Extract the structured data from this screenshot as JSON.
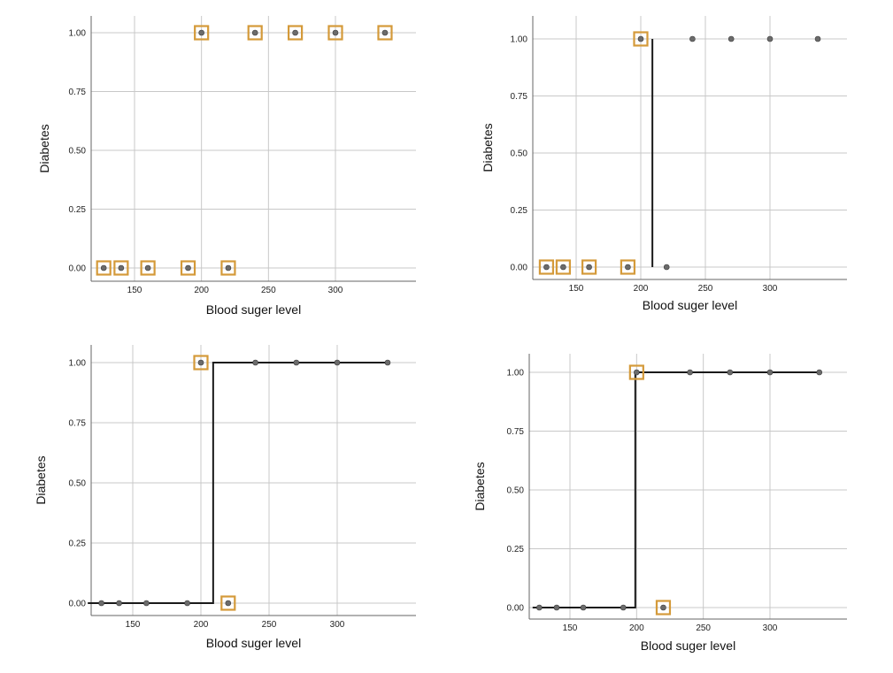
{
  "chart_data": [
    {
      "type": "scatter",
      "xlabel": "Blood suger level",
      "ylabel": "Diabetes",
      "xticks": [
        150,
        200,
        250,
        300
      ],
      "yticks": [
        0.0,
        0.25,
        0.5,
        0.75,
        1.0
      ],
      "ytick_labels": [
        "0.00",
        "0.25",
        "0.50",
        "0.75",
        "1.00"
      ],
      "grid": true,
      "xlim": [
        117,
        345
      ],
      "ylim": [
        -0.05,
        1.07
      ],
      "points": [
        {
          "x": 127,
          "y": 0,
          "highlighted": true
        },
        {
          "x": 140,
          "y": 0,
          "highlighted": true
        },
        {
          "x": 160,
          "y": 0,
          "highlighted": true
        },
        {
          "x": 190,
          "y": 0,
          "highlighted": true
        },
        {
          "x": 220,
          "y": 0,
          "highlighted": true
        },
        {
          "x": 200,
          "y": 1,
          "highlighted": true
        },
        {
          "x": 240,
          "y": 1,
          "highlighted": true
        },
        {
          "x": 270,
          "y": 1,
          "highlighted": true
        },
        {
          "x": 300,
          "y": 1,
          "highlighted": true
        },
        {
          "x": 337,
          "y": 1,
          "highlighted": true
        }
      ],
      "step_line": null
    },
    {
      "type": "scatter",
      "xlabel": "Blood suger level",
      "ylabel": "Diabetes",
      "xticks": [
        150,
        200,
        250,
        300
      ],
      "yticks": [
        0.0,
        0.25,
        0.5,
        0.75,
        1.0
      ],
      "ytick_labels": [
        "0.00",
        "0.25",
        "0.50",
        "0.75",
        "1.00"
      ],
      "grid": true,
      "xlim": [
        117,
        345
      ],
      "ylim": [
        -0.05,
        1.07
      ],
      "points": [
        {
          "x": 127,
          "y": 0,
          "highlighted": true
        },
        {
          "x": 140,
          "y": 0,
          "highlighted": true
        },
        {
          "x": 160,
          "y": 0,
          "highlighted": true
        },
        {
          "x": 190,
          "y": 0,
          "highlighted": true
        },
        {
          "x": 220,
          "y": 0,
          "highlighted": false
        },
        {
          "x": 200,
          "y": 1,
          "highlighted": true
        },
        {
          "x": 240,
          "y": 1,
          "highlighted": false
        },
        {
          "x": 270,
          "y": 1,
          "highlighted": false
        },
        {
          "x": 300,
          "y": 1,
          "highlighted": false
        },
        {
          "x": 337,
          "y": 1,
          "highlighted": false
        }
      ],
      "step_line": {
        "threshold": 209,
        "type": "vertical"
      }
    },
    {
      "type": "scatter",
      "xlabel": "Blood suger level",
      "ylabel": "Diabetes",
      "xticks": [
        150,
        200,
        250,
        300
      ],
      "yticks": [
        0.0,
        0.25,
        0.5,
        0.75,
        1.0
      ],
      "ytick_labels": [
        "0.00",
        "0.25",
        "0.50",
        "0.75",
        "1.00"
      ],
      "grid": true,
      "xlim": [
        117,
        345
      ],
      "ylim": [
        -0.05,
        1.07
      ],
      "points": [
        {
          "x": 127,
          "y": 0,
          "highlighted": false
        },
        {
          "x": 140,
          "y": 0,
          "highlighted": false
        },
        {
          "x": 160,
          "y": 0,
          "highlighted": false
        },
        {
          "x": 190,
          "y": 0,
          "highlighted": false
        },
        {
          "x": 220,
          "y": 0,
          "highlighted": true
        },
        {
          "x": 200,
          "y": 1,
          "highlighted": true
        },
        {
          "x": 240,
          "y": 1,
          "highlighted": false
        },
        {
          "x": 270,
          "y": 1,
          "highlighted": false
        },
        {
          "x": 300,
          "y": 1,
          "highlighted": false
        },
        {
          "x": 337,
          "y": 1,
          "highlighted": false
        }
      ],
      "step_line": {
        "threshold": 209,
        "type": "step",
        "x_start": 117,
        "x_end": 337
      }
    },
    {
      "type": "scatter",
      "xlabel": "Blood suger level",
      "ylabel": "Diabetes",
      "xticks": [
        150,
        200,
        250,
        300
      ],
      "yticks": [
        0.0,
        0.25,
        0.5,
        0.75,
        1.0
      ],
      "ytick_labels": [
        "0.00",
        "0.25",
        "0.50",
        "0.75",
        "1.00"
      ],
      "grid": true,
      "xlim": [
        117,
        345
      ],
      "ylim": [
        -0.05,
        1.07
      ],
      "points": [
        {
          "x": 127,
          "y": 0,
          "highlighted": false
        },
        {
          "x": 140,
          "y": 0,
          "highlighted": false
        },
        {
          "x": 160,
          "y": 0,
          "highlighted": false
        },
        {
          "x": 190,
          "y": 0,
          "highlighted": false
        },
        {
          "x": 220,
          "y": 0,
          "highlighted": true
        },
        {
          "x": 200,
          "y": 1,
          "highlighted": true
        },
        {
          "x": 240,
          "y": 1,
          "highlighted": false
        },
        {
          "x": 270,
          "y": 1,
          "highlighted": false
        },
        {
          "x": 300,
          "y": 1,
          "highlighted": false
        },
        {
          "x": 337,
          "y": 1,
          "highlighted": false
        }
      ],
      "step_line": {
        "threshold": 199,
        "type": "step",
        "x_start": 122,
        "x_end": 337
      }
    }
  ],
  "colors": {
    "highlight": "#d49a3a",
    "point": "#6b6b6b",
    "line": "#1a1a1a",
    "grid": "#c8c8c8"
  }
}
